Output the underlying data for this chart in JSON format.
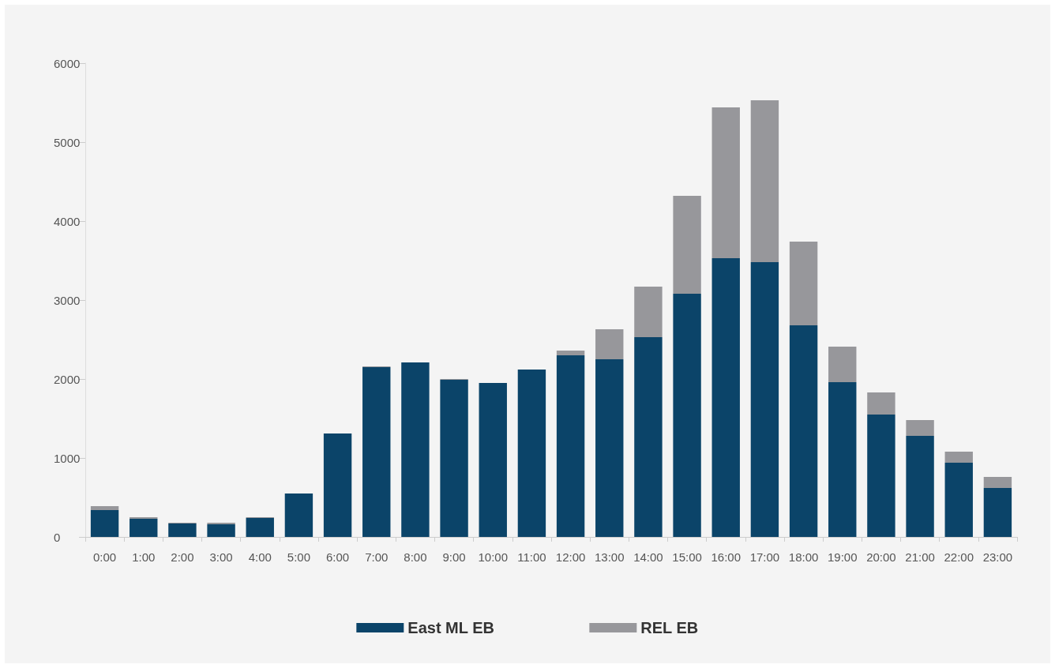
{
  "chart_data": {
    "type": "bar",
    "stacked": true,
    "categories": [
      "0:00",
      "1:00",
      "2:00",
      "3:00",
      "4:00",
      "5:00",
      "6:00",
      "7:00",
      "8:00",
      "9:00",
      "10:00",
      "11:00",
      "12:00",
      "13:00",
      "14:00",
      "15:00",
      "16:00",
      "17:00",
      "18:00",
      "19:00",
      "20:00",
      "21:00",
      "22:00",
      "23:00"
    ],
    "series": [
      {
        "name": "East ML EB",
        "color": "#0b4469",
        "values": [
          340,
          230,
          170,
          160,
          240,
          550,
          1310,
          2150,
          2210,
          1990,
          1950,
          2120,
          2300,
          2250,
          2530,
          3080,
          3530,
          3480,
          2680,
          1960,
          1550,
          1280,
          940,
          620
        ]
      },
      {
        "name": "REL EB",
        "color": "#97979b",
        "values": [
          50,
          20,
          10,
          20,
          10,
          0,
          0,
          10,
          0,
          10,
          0,
          0,
          60,
          380,
          640,
          1240,
          1910,
          2050,
          1060,
          450,
          280,
          200,
          140,
          140
        ]
      }
    ],
    "ylim": [
      0,
      6000
    ],
    "yticks": [
      0,
      1000,
      2000,
      3000,
      4000,
      5000,
      6000
    ],
    "grid": false,
    "legend": "bottom"
  }
}
